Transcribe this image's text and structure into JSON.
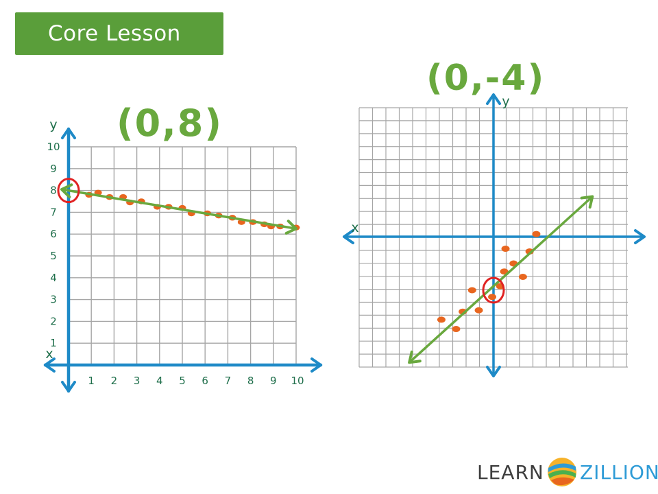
{
  "banner": {
    "label": "Core Lesson"
  },
  "annotations": {
    "left_intercept": "(0,8)",
    "right_intercept": "(0,-4)"
  },
  "logo": {
    "learn": "LEARN",
    "zillion": "ZILLION",
    "icon": "learnzillion-swirl-icon"
  },
  "colors": {
    "axis": "#1e8ac7",
    "grid": "#a6a6a6",
    "line": "#69a83e",
    "point": "#e8661f",
    "circle": "#e02222",
    "banner": "#5a9e3a"
  },
  "chart_data": [
    {
      "type": "scatter",
      "xlabel": "x",
      "ylabel": "y",
      "xlim": [
        0,
        10
      ],
      "ylim": [
        0,
        10
      ],
      "x_ticks": [
        "1",
        "2",
        "3",
        "4",
        "5",
        "6",
        "7",
        "8",
        "9",
        "10"
      ],
      "y_ticks": [
        "1",
        "2",
        "3",
        "4",
        "5",
        "6",
        "7",
        "8",
        "9",
        "10"
      ],
      "grid": true,
      "points": [
        {
          "x": 0.9,
          "y": 7.8
        },
        {
          "x": 1.3,
          "y": 7.9
        },
        {
          "x": 1.8,
          "y": 7.7
        },
        {
          "x": 2.4,
          "y": 7.7
        },
        {
          "x": 2.7,
          "y": 7.45
        },
        {
          "x": 3.2,
          "y": 7.5
        },
        {
          "x": 3.9,
          "y": 7.25
        },
        {
          "x": 4.4,
          "y": 7.25
        },
        {
          "x": 5.0,
          "y": 7.2
        },
        {
          "x": 5.4,
          "y": 6.95
        },
        {
          "x": 6.1,
          "y": 6.95
        },
        {
          "x": 6.6,
          "y": 6.85
        },
        {
          "x": 7.2,
          "y": 6.75
        },
        {
          "x": 7.6,
          "y": 6.55
        },
        {
          "x": 8.1,
          "y": 6.55
        },
        {
          "x": 8.6,
          "y": 6.45
        },
        {
          "x": 8.9,
          "y": 6.35
        },
        {
          "x": 9.3,
          "y": 6.35
        },
        {
          "x": 10.0,
          "y": 6.3
        }
      ],
      "trend_line": {
        "x": [
          -0.3,
          10.0
        ],
        "y": [
          8.05,
          6.25
        ]
      },
      "highlight": {
        "x": 0,
        "y": 8
      }
    },
    {
      "type": "scatter",
      "xlabel": "x",
      "ylabel": "y",
      "xlim": [
        -10,
        10
      ],
      "ylim": [
        -10,
        10
      ],
      "grid": true,
      "points": [
        {
          "x": 3.2,
          "y": 0.2
        },
        {
          "x": 0.9,
          "y": -0.9
        },
        {
          "x": 2.7,
          "y": -1.1
        },
        {
          "x": 1.5,
          "y": -2.0
        },
        {
          "x": 0.8,
          "y": -2.6
        },
        {
          "x": 2.2,
          "y": -3.0
        },
        {
          "x": 0.5,
          "y": -3.7
        },
        {
          "x": -1.6,
          "y": -4.0
        },
        {
          "x": -0.1,
          "y": -4.5
        },
        {
          "x": -2.3,
          "y": -5.6
        },
        {
          "x": -1.1,
          "y": -5.5
        },
        {
          "x": -3.9,
          "y": -6.2
        },
        {
          "x": -2.8,
          "y": -6.9
        }
      ],
      "trend_line": {
        "x": [
          -6.3,
          7.4
        ],
        "y": [
          -9.4,
          3.0
        ]
      },
      "highlight": {
        "x": 0,
        "y": -4
      }
    }
  ]
}
